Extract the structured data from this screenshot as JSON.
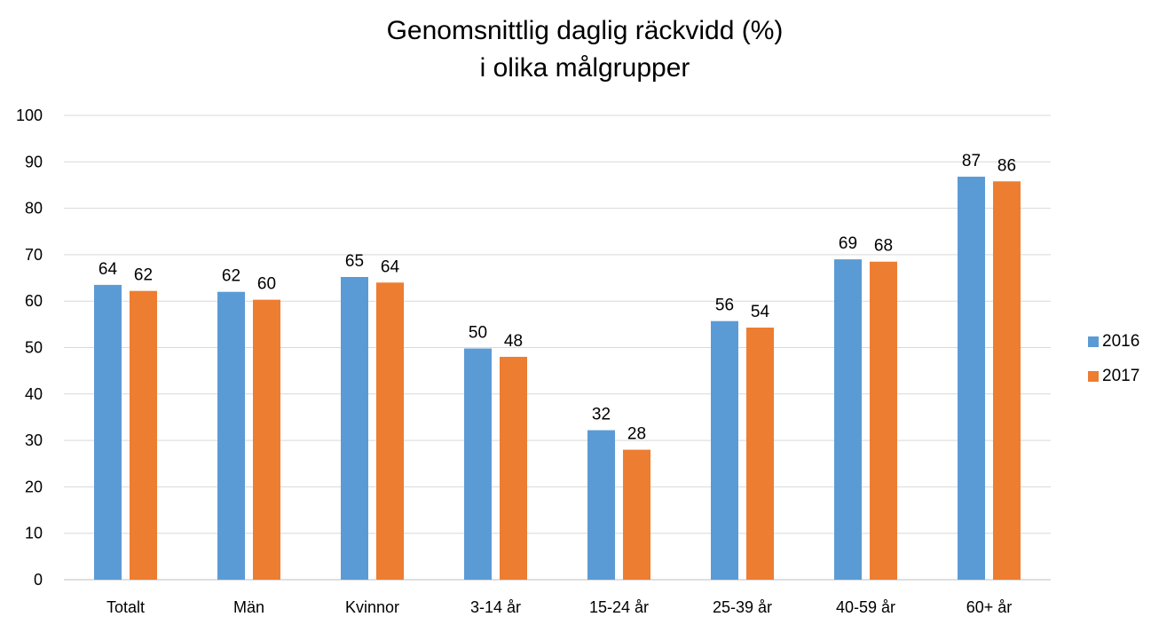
{
  "chart_data": {
    "type": "bar",
    "title_line1": "Genomsnittlig daglig räckvidd (%)",
    "title_line2": "i olika målgrupper",
    "categories": [
      "Totalt",
      "Män",
      "Kvinnor",
      "3-14 år",
      "15-24 år",
      "25-39 år",
      "40-59 år",
      "60+ år"
    ],
    "series": [
      {
        "name": "2016",
        "color": "#5B9BD5",
        "values": [
          63.5,
          62,
          65.2,
          49.8,
          32.2,
          55.7,
          69,
          86.8
        ],
        "labels": [
          "64",
          "62",
          "65",
          "50",
          "32",
          "56",
          "69",
          "87"
        ]
      },
      {
        "name": "2017",
        "color": "#ED7D31",
        "values": [
          62.2,
          60.3,
          64,
          48,
          28,
          54.3,
          68.5,
          85.8
        ],
        "labels": [
          "62",
          "60",
          "64",
          "48",
          "28",
          "54",
          "68",
          "86"
        ]
      }
    ],
    "ylim": [
      0,
      100
    ],
    "yticks": [
      "0",
      "10",
      "20",
      "30",
      "40",
      "50",
      "60",
      "70",
      "80",
      "90",
      "100"
    ],
    "grid": true,
    "legend_position": "right"
  }
}
